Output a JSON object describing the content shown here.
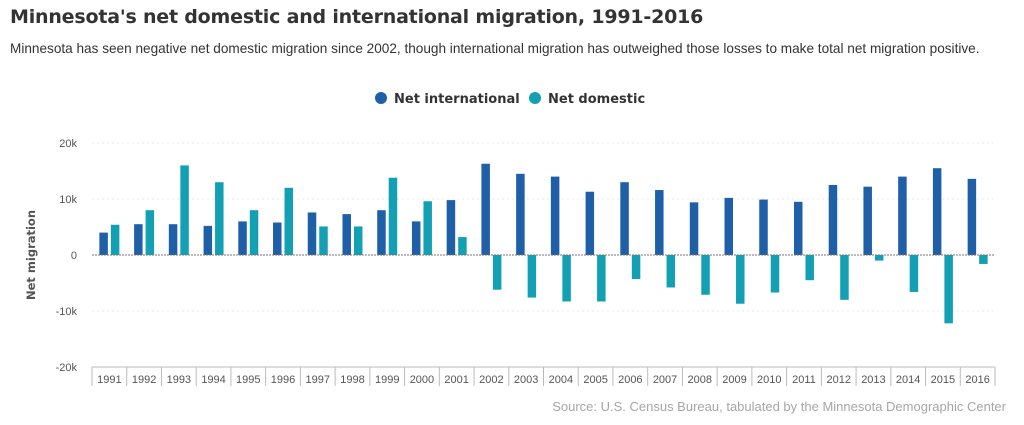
{
  "header": {
    "title": "Minnesota's net domestic and international migration, 1991-2016",
    "subtitle": "Minnesota has seen negative net domestic migration since 2002, though international migration has outweighed those losses to make total net migration positive."
  },
  "source": "Source: U.S. Census Bureau, tabulated by the Minnesota Demographic Center",
  "colors": {
    "international": "#1f5fa8",
    "domestic": "#13a0b4"
  },
  "chart_data": {
    "type": "bar",
    "title": "Minnesota's net domestic and international migration, 1991-2016",
    "xlabel": "",
    "ylabel": "Net migration",
    "ylim": [
      -20000,
      20000
    ],
    "yticks": [
      20000,
      10000,
      0,
      -10000,
      -20000
    ],
    "ytick_labels": [
      "20k",
      "10k",
      "0",
      "-10k",
      "-20k"
    ],
    "legend_position": "top-center",
    "categories": [
      "1991",
      "1992",
      "1993",
      "1994",
      "1995",
      "1996",
      "1997",
      "1998",
      "1999",
      "2000",
      "2001",
      "2002",
      "2003",
      "2004",
      "2005",
      "2006",
      "2007",
      "2008",
      "2009",
      "2010",
      "2011",
      "2012",
      "2013",
      "2014",
      "2015",
      "2016"
    ],
    "series": [
      {
        "name": "Net international",
        "values": [
          4000,
          5500,
          5500,
          5200,
          6000,
          5800,
          7600,
          7300,
          8000,
          6000,
          9800,
          16300,
          14500,
          14000,
          11300,
          13000,
          11600,
          9400,
          10200,
          9900,
          9500,
          12500,
          12200,
          14000,
          15500,
          13600
        ]
      },
      {
        "name": "Net domestic",
        "values": [
          5400,
          8000,
          16000,
          13000,
          8000,
          12000,
          5100,
          5100,
          13800,
          9600,
          3200,
          -6200,
          -7600,
          -8300,
          -8300,
          -4300,
          -5800,
          -7100,
          -8700,
          -6700,
          -4500,
          -8000,
          -1000,
          -6600,
          -12200,
          -1600
        ]
      }
    ]
  }
}
